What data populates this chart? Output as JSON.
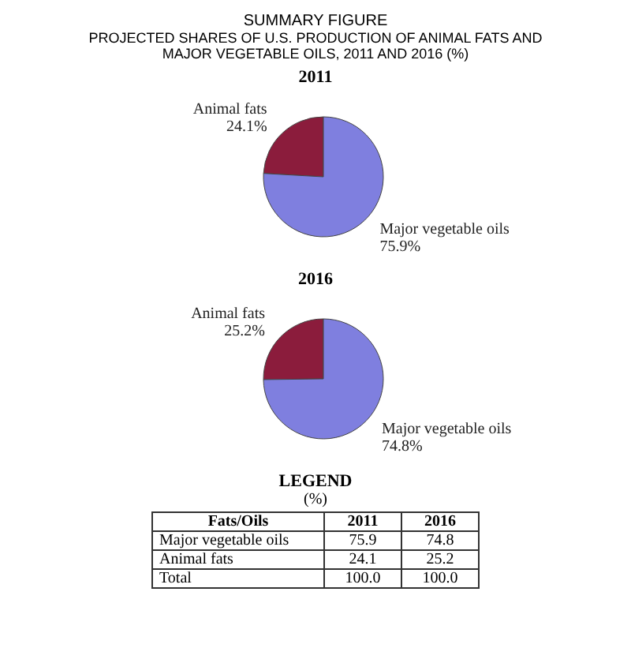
{
  "chart_data": [
    {
      "type": "pie",
      "title": "SUMMARY FIGURE",
      "subtitle": "PROJECTED SHARES OF U.S. PRODUCTION OF ANIMAL FATS AND MAJOR VEGETABLE OILS, 2011 AND 2016 (%)",
      "annotations": [
        "2011"
      ],
      "categories": [
        "Animal fats",
        "Major vegetable oils"
      ],
      "values": [
        24.1,
        75.9
      ],
      "value_labels": [
        "24.1%",
        "75.9%"
      ],
      "colors": [
        "#8b1c3c",
        "#7f7fdf"
      ],
      "legend": false
    },
    {
      "type": "pie",
      "title": "2016",
      "categories": [
        "Animal fats",
        "Major vegetable oils"
      ],
      "values": [
        25.2,
        74.8
      ],
      "value_labels": [
        "25.2%",
        "74.8%"
      ],
      "colors": [
        "#8b1c3c",
        "#7f7fdf"
      ],
      "legend": false
    },
    {
      "type": "other",
      "title": "LEGEND",
      "subtitle": "(%)",
      "xlabel": "Fats/Oils",
      "categories": [
        "Major vegetable oils",
        "Animal fats",
        "Total"
      ],
      "series": [
        {
          "name": "2011",
          "values": [
            75.9,
            24.1,
            100.0
          ],
          "value_labels": [
            "75.9",
            "24.1",
            "100.0"
          ]
        },
        {
          "name": "2016",
          "values": [
            74.8,
            25.2,
            100.0
          ],
          "value_labels": [
            "74.8",
            "25.2",
            "100.0"
          ]
        }
      ]
    }
  ]
}
